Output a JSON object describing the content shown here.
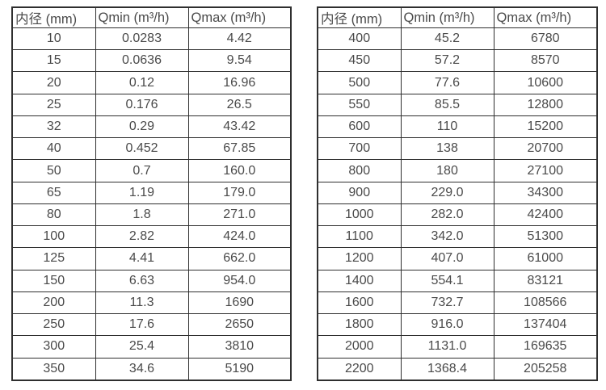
{
  "page": {
    "background": "#ffffff"
  },
  "colors": {
    "text": "#4a4a4a",
    "border": "#2f2f2f",
    "cell_background": "#ffffff"
  },
  "tables": [
    {
      "name": "flow-rate-table-small-diameters",
      "headers": [
        "内径 (mm)",
        "Qmin (m³/h)",
        "Qmax (m³/h)"
      ],
      "rows": [
        [
          "10",
          "0.0283",
          "4.42"
        ],
        [
          "15",
          "0.0636",
          "9.54"
        ],
        [
          "20",
          "0.12",
          "16.96"
        ],
        [
          "25",
          "0.176",
          "26.5"
        ],
        [
          "32",
          "0.29",
          "43.42"
        ],
        [
          "40",
          "0.452",
          "67.85"
        ],
        [
          "50",
          "0.7",
          "160.0"
        ],
        [
          "65",
          "1.19",
          "179.0"
        ],
        [
          "80",
          "1.8",
          "271.0"
        ],
        [
          "100",
          "2.82",
          "424.0"
        ],
        [
          "125",
          "4.41",
          "662.0"
        ],
        [
          "150",
          "6.63",
          "954.0"
        ],
        [
          "200",
          "11.3",
          "1690"
        ],
        [
          "250",
          "17.6",
          "2650"
        ],
        [
          "300",
          "25.4",
          "3810"
        ],
        [
          "350",
          "34.6",
          "5190"
        ]
      ]
    },
    {
      "name": "flow-rate-table-large-diameters",
      "headers": [
        "内径 (mm)",
        "Qmin (m³/h)",
        "Qmax (m³/h)"
      ],
      "rows": [
        [
          "400",
          "45.2",
          "6780"
        ],
        [
          "450",
          "57.2",
          "8570"
        ],
        [
          "500",
          "77.6",
          "10600"
        ],
        [
          "550",
          "85.5",
          "12800"
        ],
        [
          "600",
          "110",
          "15200"
        ],
        [
          "700",
          "138",
          "20700"
        ],
        [
          "800",
          "180",
          "27100"
        ],
        [
          "900",
          "229.0",
          "34300"
        ],
        [
          "1000",
          "282.0",
          "42400"
        ],
        [
          "1100",
          "342.0",
          "51300"
        ],
        [
          "1200",
          "407.0",
          "61000"
        ],
        [
          "1400",
          "554.1",
          "83121"
        ],
        [
          "1600",
          "732.7",
          "108566"
        ],
        [
          "1800",
          "916.0",
          "137404"
        ],
        [
          "2000",
          "1131.0",
          "169635"
        ],
        [
          "2200",
          "1368.4",
          "205258"
        ]
      ]
    }
  ]
}
